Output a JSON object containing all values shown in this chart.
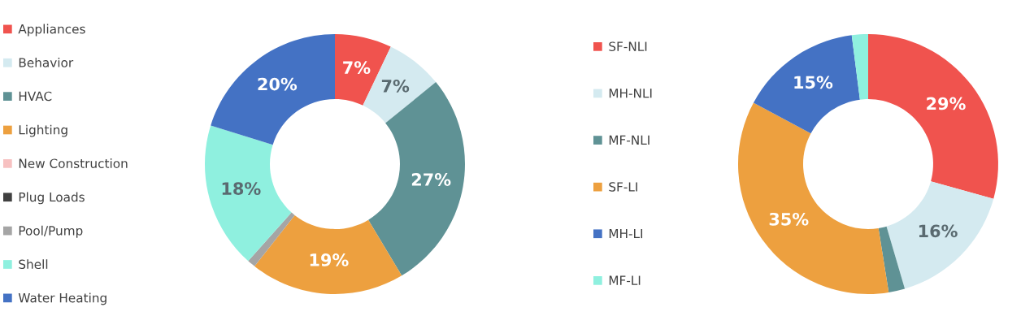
{
  "chart_data": [
    {
      "type": "donut",
      "categories": [
        "Appliances",
        "Behavior",
        "HVAC",
        "Lighting",
        "New Construction",
        "Plug Loads",
        "Pool/Pump",
        "Shell",
        "Water Heating"
      ],
      "values": [
        7,
        7,
        27,
        19,
        0,
        0,
        1,
        18,
        20
      ],
      "value_labels": [
        "7%",
        "7%",
        "27%",
        "19%",
        null,
        null,
        null,
        "18%",
        "20%"
      ],
      "colors": [
        "#f0534e",
        "#d4eaf0",
        "#5f9295",
        "#eda03f",
        "#f7c1c1",
        "#404040",
        "#a5a5a5",
        "#8ff0df",
        "#4472c4"
      ],
      "legend": "left"
    },
    {
      "type": "donut",
      "categories": [
        "SF-NLI",
        "MH-NLI",
        "MF-NLI",
        "SF-LI",
        "MH-LI",
        "MF-LI"
      ],
      "values": [
        29,
        16,
        2,
        35,
        15,
        2
      ],
      "value_labels": [
        "29%",
        "16%",
        null,
        "35%",
        "15%",
        null
      ],
      "colors": [
        "#f0534e",
        "#d4eaf0",
        "#5f9295",
        "#eda03f",
        "#4472c4",
        "#8ff0df"
      ],
      "legend": "left"
    }
  ]
}
